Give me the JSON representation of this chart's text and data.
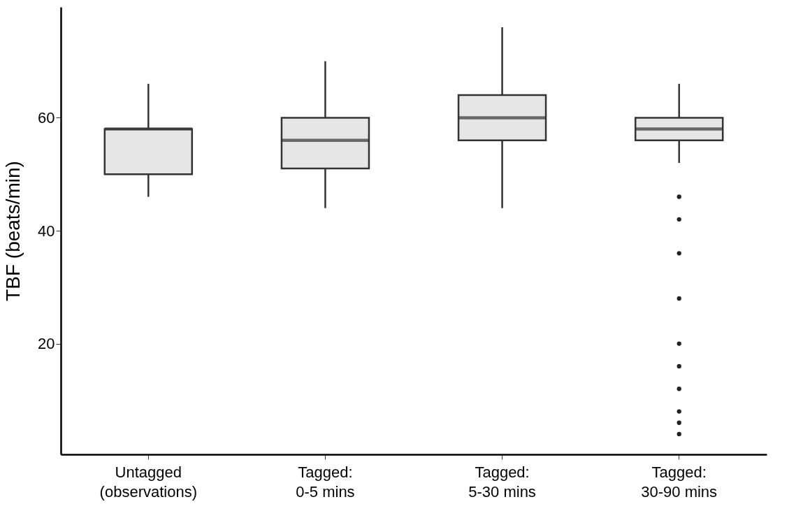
{
  "chart_data": {
    "type": "box",
    "ylabel": "TBF  (beats/min)",
    "categories": [
      "Untagged\n(observations)",
      "Tagged:\n0-5 mins",
      "Tagged:\n5-30 mins",
      "Tagged:\n30-90 mins"
    ],
    "boxes": [
      {
        "low": 46,
        "q1": 50,
        "median": 58,
        "q3": 58,
        "high": 66
      },
      {
        "low": 44,
        "q1": 51,
        "median": 56,
        "q3": 60,
        "high": 70
      },
      {
        "low": 44,
        "q1": 56,
        "median": 60,
        "q3": 64,
        "high": 76
      },
      {
        "low": 52,
        "q1": 56,
        "median": 58,
        "q3": 60,
        "high": 66,
        "outliers": [
          46,
          42,
          36,
          28,
          20,
          16,
          12,
          8,
          6,
          4
        ]
      }
    ],
    "color": "#e6e6e6",
    "ylim": [
      0.4,
      79.6
    ],
    "yticks": [
      20,
      40,
      60
    ],
    "grid": false
  }
}
